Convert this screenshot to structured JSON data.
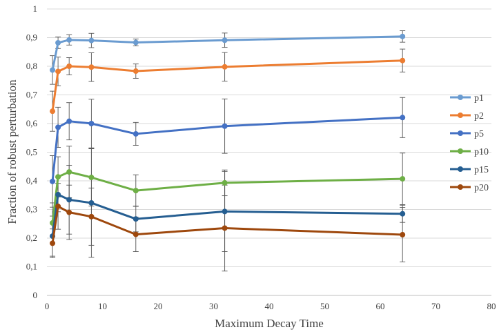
{
  "chart_data": {
    "type": "line",
    "title": "",
    "xlabel": "Maximum Decay Time",
    "ylabel": "Fraction of robust perturbation",
    "xlim": [
      0,
      80
    ],
    "ylim": [
      0,
      1
    ],
    "x_ticks": [
      0,
      10,
      20,
      30,
      40,
      50,
      60,
      70,
      80
    ],
    "y_ticks": [
      "0",
      "0,1",
      "0,2",
      "0,3",
      "0,4",
      "0,5",
      "0,6",
      "0,7",
      "0,8",
      "0,9",
      "1"
    ],
    "grid": "horizontal",
    "legend_position": "right",
    "x": [
      1,
      2,
      4,
      8,
      16,
      32,
      64
    ],
    "series": [
      {
        "name": "p1",
        "color": "#6a9bd0",
        "values": [
          0.787,
          0.882,
          0.892,
          0.89,
          0.883,
          0.891,
          0.904
        ],
        "err": [
          0.05,
          0.02,
          0.018,
          0.025,
          0.012,
          0.025,
          0.02
        ]
      },
      {
        "name": "p2",
        "color": "#ec7d31",
        "values": [
          0.643,
          0.782,
          0.8,
          0.797,
          0.783,
          0.798,
          0.82
        ],
        "err": [
          0.07,
          0.05,
          0.03,
          0.05,
          0.025,
          0.05,
          0.04
        ]
      },
      {
        "name": "p5",
        "color": "#4471c4",
        "values": [
          0.398,
          0.587,
          0.608,
          0.6,
          0.564,
          0.591,
          0.621
        ],
        "err": [
          0.09,
          0.07,
          0.065,
          0.085,
          0.04,
          0.095,
          0.07
        ]
      },
      {
        "name": "p10",
        "color": "#6eaf46",
        "values": [
          0.253,
          0.414,
          0.431,
          0.412,
          0.366,
          0.393,
          0.407
        ],
        "err": [
          0.07,
          0.07,
          0.09,
          0.1,
          0.055,
          0.045,
          0.09
        ]
      },
      {
        "name": "p15",
        "color": "#255e91",
        "values": [
          0.207,
          0.352,
          0.334,
          0.323,
          0.267,
          0.293,
          0.285
        ],
        "err": [
          0.07,
          0.06,
          0.12,
          0.19,
          0.045,
          0.14,
          0.03
        ]
      },
      {
        "name": "p20",
        "color": "#9e480d",
        "values": [
          0.182,
          0.311,
          0.29,
          0.275,
          0.213,
          0.235,
          0.212
        ],
        "err": [
          0.05,
          0.08,
          0.095,
          0.1,
          0.06,
          0.15,
          0.095
        ]
      }
    ]
  }
}
